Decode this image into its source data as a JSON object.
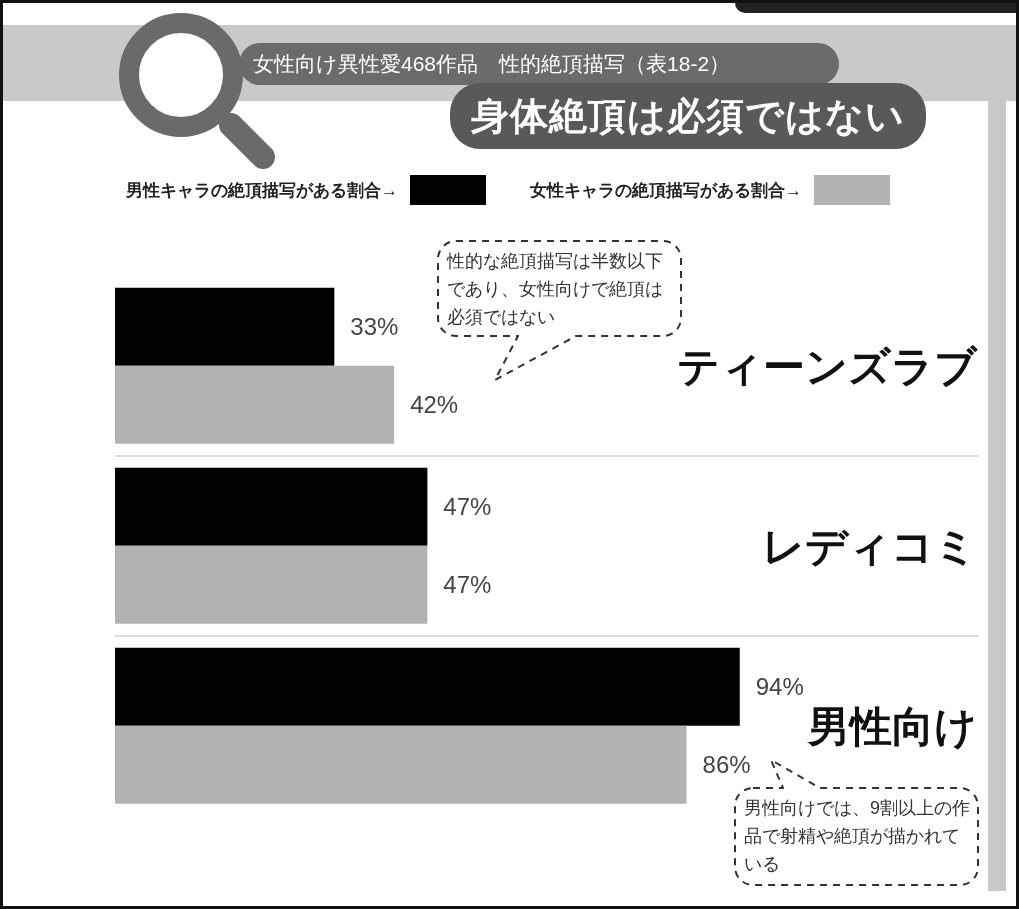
{
  "chart_data": {
    "type": "bar",
    "orientation": "horizontal",
    "title": "女性向け異性愛468作品　性的絶頂描写（表18-2）",
    "subtitle": "身体絶頂は必須ではない",
    "categories": [
      "ティーンズラブ",
      "レディコミ",
      "男性向け"
    ],
    "series": [
      {
        "name": "男性キャラの絶頂描写がある割合→",
        "color": "#000000",
        "values": [
          33,
          47,
          94
        ],
        "value_labels": [
          "33%",
          "47%",
          "94%"
        ]
      },
      {
        "name": "女性キャラの絶頂描写がある割合→",
        "color": "#b3b3b3",
        "values": [
          42,
          47,
          86
        ],
        "value_labels": [
          "42%",
          "47%",
          "86%"
        ]
      }
    ],
    "xlim": [
      0,
      130
    ],
    "legend": "top",
    "grid": "y",
    "tick_labels": "y",
    "annotations": [
      "性的な絶頂描写は半数以下であり、女性向けで絶頂は必須ではない",
      "男性向けでは、9割以上の作品で射精や絶頂が描かれている"
    ]
  }
}
